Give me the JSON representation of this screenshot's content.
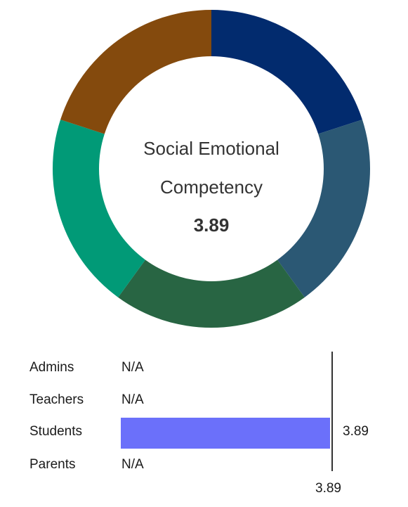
{
  "chart_data": [
    {
      "type": "pie",
      "style": "donut",
      "title": "Social Emotional Competency",
      "title_lines": [
        "Social Emotional",
        "Competency"
      ],
      "center_value": "3.89",
      "slices": [
        {
          "value": 1,
          "color": "#022b6e"
        },
        {
          "value": 1,
          "color": "#2b5874"
        },
        {
          "value": 1,
          "color": "#286543"
        },
        {
          "value": 1,
          "color": "#019a77"
        },
        {
          "value": 1,
          "color": "#844a0d"
        }
      ]
    },
    {
      "type": "bar",
      "orientation": "horizontal",
      "categories": [
        "Admins",
        "Teachers",
        "Students",
        "Parents"
      ],
      "values": [
        null,
        null,
        3.89,
        null
      ],
      "value_labels": [
        "N/A",
        "N/A",
        "3.89",
        "N/A"
      ],
      "bar_color": "#6b70fa",
      "xlim": [
        0,
        3.89
      ],
      "reference_line": {
        "value": 3.89,
        "label": "3.89"
      }
    }
  ]
}
